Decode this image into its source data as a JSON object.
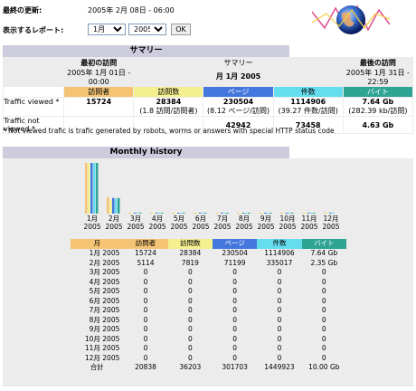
{
  "header": {
    "last_update_label": "最終の更新:",
    "last_update_value": "2005年 2月 08日 - 06:00",
    "report_label": "表示するレポート:",
    "month_select": "1月",
    "year_select": "2005",
    "ok_label": "OK"
  },
  "summary": {
    "title": "サマリー",
    "first_visit_label": "最初の訪問",
    "first_visit_value": "2005年 1月 01日 - 00:00",
    "period_label": "サマリー",
    "period_value": "月 1月 2005",
    "last_visit_label": "最後の訪問",
    "last_visit_value": "2005年 1月 31日 - 22:59",
    "col_visitors": "訪問者",
    "col_visits": "訪問数",
    "col_pages": "ページ",
    "col_hits": "件数",
    "col_bytes": "バイト",
    "row_viewed_label": "Traffic viewed *",
    "row_viewed": {
      "visitors": "15724",
      "visits": "28384",
      "visits_sub": "(1.8 訪問/訪問者)",
      "pages": "230504",
      "pages_sub": "(8.12 ページ/訪問)",
      "hits": "1114906",
      "hits_sub": "(39.27 件数/訪問)",
      "bytes": "7.64 Gb",
      "bytes_sub": "(282.39 kb/訪問)"
    },
    "row_notviewed_label": "Traffic not viewed *",
    "row_notviewed": {
      "pages": "42942",
      "hits": "73458",
      "bytes": "4.63 Gb"
    },
    "note": "* Not viewed trafic is trafic generated by robots, worms or answers with special HTTP status code"
  },
  "monthly": {
    "title": "Monthly history",
    "header": [
      "月",
      "訪問者",
      "訪問数",
      "ページ",
      "件数",
      "バイト"
    ],
    "rows": [
      [
        "1月 2005",
        "15724",
        "28384",
        "230504",
        "1114906",
        "7.64 Gb"
      ],
      [
        "2月 2005",
        "5114",
        "7819",
        "71199",
        "335017",
        "2.35 Gb"
      ],
      [
        "3月 2005",
        "0",
        "0",
        "0",
        "0",
        "0"
      ],
      [
        "4月 2005",
        "0",
        "0",
        "0",
        "0",
        "0"
      ],
      [
        "5月 2005",
        "0",
        "0",
        "0",
        "0",
        "0"
      ],
      [
        "6月 2005",
        "0",
        "0",
        "0",
        "0",
        "0"
      ],
      [
        "7月 2005",
        "0",
        "0",
        "0",
        "0",
        "0"
      ],
      [
        "8月 2005",
        "0",
        "0",
        "0",
        "0",
        "0"
      ],
      [
        "9月 2005",
        "0",
        "0",
        "0",
        "0",
        "0"
      ],
      [
        "10月 2005",
        "0",
        "0",
        "0",
        "0",
        "0"
      ],
      [
        "11月 2005",
        "0",
        "0",
        "0",
        "0",
        "0"
      ],
      [
        "12月 2005",
        "0",
        "0",
        "0",
        "0",
        "0"
      ]
    ],
    "total": [
      "合計",
      "20838",
      "36203",
      "301703",
      "1449923",
      "10.00 Gb"
    ]
  },
  "chart_data": {
    "type": "bar",
    "categories": [
      "1月\n2005",
      "2月\n2005",
      "3月\n2005",
      "4月\n2005",
      "5月\n2005",
      "6月\n2005",
      "7月\n2005",
      "8月\n2005",
      "9月\n2005",
      "10月\n2005",
      "11月\n2005",
      "12月\n2005"
    ],
    "series": [
      {
        "values": [
          15724,
          5114,
          0,
          0,
          0,
          0,
          0,
          0,
          0,
          0,
          0,
          0
        ],
        "color": "#f4c474"
      },
      {
        "values": [
          28384,
          7819,
          0,
          0,
          0,
          0,
          0,
          0,
          0,
          0,
          0,
          0
        ],
        "color": "#f4f090"
      },
      {
        "values": [
          230504,
          71199,
          0,
          0,
          0,
          0,
          0,
          0,
          0,
          0,
          0,
          0
        ],
        "color": "#4477dd"
      },
      {
        "values": [
          1114906,
          335017,
          0,
          0,
          0,
          0,
          0,
          0,
          0,
          0,
          0,
          0
        ],
        "color": "#66ddee"
      },
      {
        "values": [
          7.64,
          2.35,
          0,
          0,
          0,
          0,
          0,
          0,
          0,
          0,
          0,
          0
        ],
        "color": "#2ea495"
      }
    ]
  },
  "colors": {
    "visitors": "#f4c474",
    "visits": "#f4f090",
    "pages": "#4477dd",
    "hits": "#66ddee",
    "bytes": "#2ea495",
    "section": "#ccccdd"
  }
}
